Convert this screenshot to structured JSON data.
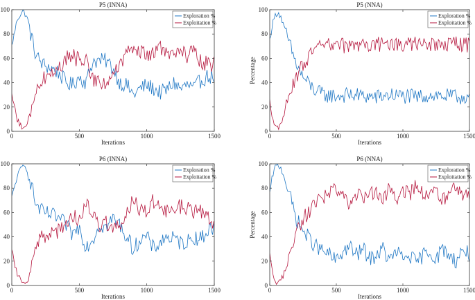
{
  "colors": {
    "exploration": "#1f77c4",
    "exploitation": "#b5163d"
  },
  "chart_data": [
    {
      "type": "line",
      "title": "P5 (INNA)",
      "xlabel": "Iterations",
      "ylabel": "",
      "xlim": [
        0,
        1500
      ],
      "ylim": [
        0,
        100
      ],
      "xticks": [
        0,
        500,
        1000,
        1500
      ],
      "yticks": [
        0,
        20,
        40,
        60,
        80,
        100
      ],
      "grid": false,
      "legend": "top-right",
      "series": [
        {
          "name": "Exploration %",
          "color": "exploration",
          "x": [
            0,
            40,
            80,
            110,
            140,
            180,
            230,
            290,
            350,
            400,
            450,
            500,
            550,
            600,
            650,
            700,
            750,
            800,
            850,
            900,
            950,
            1000,
            1050,
            1100,
            1150,
            1200,
            1250,
            1300,
            1350,
            1400,
            1450,
            1500
          ],
          "values": [
            70,
            92,
            99,
            95,
            80,
            62,
            55,
            52,
            48,
            40,
            38,
            45,
            40,
            58,
            58,
            58,
            52,
            40,
            38,
            30,
            35,
            38,
            35,
            32,
            34,
            40,
            35,
            38,
            35,
            42,
            45,
            45
          ]
        },
        {
          "name": "Exploitation %",
          "color": "exploitation",
          "x": [
            0,
            40,
            80,
            110,
            140,
            180,
            230,
            290,
            350,
            400,
            450,
            500,
            550,
            600,
            650,
            700,
            750,
            800,
            850,
            900,
            950,
            1000,
            1050,
            1100,
            1150,
            1200,
            1250,
            1300,
            1350,
            1400,
            1450,
            1500
          ],
          "values": [
            30,
            10,
            2,
            3,
            15,
            35,
            43,
            48,
            52,
            60,
            62,
            58,
            60,
            42,
            42,
            40,
            45,
            55,
            62,
            70,
            65,
            62,
            65,
            68,
            66,
            62,
            65,
            62,
            65,
            58,
            55,
            55
          ]
        }
      ]
    },
    {
      "type": "line",
      "title": "P5 (NNA)",
      "xlabel": "Iterations",
      "ylabel": "Percentage",
      "xlim": [
        0,
        1500
      ],
      "ylim": [
        0,
        100
      ],
      "xticks": [
        0,
        500,
        1000,
        1500
      ],
      "yticks": [
        0,
        20,
        40,
        60,
        80,
        100
      ],
      "grid": false,
      "legend": "top-right",
      "series": [
        {
          "name": "Exploration %",
          "color": "exploration",
          "x": [
            0,
            20,
            40,
            60,
            80,
            100,
            130,
            160,
            190,
            220,
            260,
            300,
            350,
            400,
            500,
            600,
            700,
            800,
            900,
            1000,
            1100,
            1200,
            1300,
            1400,
            1500
          ],
          "values": [
            75,
            88,
            95,
            98,
            95,
            88,
            78,
            68,
            58,
            50,
            43,
            38,
            33,
            30,
            29,
            30,
            29,
            28,
            30,
            29,
            28,
            30,
            29,
            28,
            29
          ]
        },
        {
          "name": "Exploitation %",
          "color": "exploitation",
          "x": [
            0,
            20,
            40,
            60,
            80,
            100,
            130,
            160,
            190,
            220,
            260,
            300,
            350,
            400,
            500,
            600,
            700,
            800,
            900,
            1000,
            1100,
            1200,
            1300,
            1400,
            1500
          ],
          "values": [
            25,
            12,
            5,
            2,
            5,
            12,
            22,
            32,
            42,
            50,
            57,
            62,
            67,
            70,
            71,
            70,
            71,
            72,
            70,
            71,
            72,
            70,
            71,
            72,
            71
          ]
        }
      ]
    },
    {
      "type": "line",
      "title": "P6 (INNA)",
      "xlabel": "Iterations",
      "ylabel": "",
      "xlim": [
        0,
        1500
      ],
      "ylim": [
        0,
        100
      ],
      "xticks": [
        0,
        500,
        1000,
        1500
      ],
      "yticks": [
        0,
        20,
        40,
        60,
        80,
        100
      ],
      "grid": false,
      "legend": "top-right",
      "series": [
        {
          "name": "Exploration %",
          "color": "exploration",
          "x": [
            0,
            40,
            80,
            110,
            140,
            180,
            230,
            290,
            350,
            400,
            450,
            500,
            550,
            600,
            650,
            700,
            750,
            800,
            850,
            900,
            950,
            1000,
            1050,
            1100,
            1150,
            1200,
            1250,
            1300,
            1350,
            1400,
            1450,
            1500
          ],
          "values": [
            72,
            90,
            98,
            97,
            85,
            66,
            60,
            58,
            55,
            50,
            42,
            48,
            32,
            38,
            50,
            48,
            55,
            50,
            40,
            30,
            38,
            40,
            30,
            36,
            40,
            38,
            35,
            36,
            40,
            38,
            45,
            48
          ]
        },
        {
          "name": "Exploitation %",
          "color": "exploitation",
          "x": [
            0,
            40,
            80,
            110,
            140,
            180,
            230,
            290,
            350,
            400,
            450,
            500,
            550,
            600,
            650,
            700,
            750,
            800,
            850,
            900,
            950,
            1000,
            1050,
            1100,
            1150,
            1200,
            1250,
            1300,
            1350,
            1400,
            1450,
            1500
          ],
          "values": [
            28,
            10,
            2,
            3,
            15,
            34,
            40,
            42,
            45,
            50,
            58,
            52,
            68,
            62,
            50,
            52,
            45,
            50,
            60,
            70,
            62,
            60,
            70,
            64,
            60,
            62,
            65,
            64,
            60,
            62,
            55,
            52
          ]
        }
      ]
    },
    {
      "type": "line",
      "title": "P6 (NNA)",
      "xlabel": "Iterations",
      "ylabel": "Percentage",
      "xlim": [
        0,
        1500
      ],
      "ylim": [
        0,
        100
      ],
      "xticks": [
        0,
        500,
        1000,
        1500
      ],
      "yticks": [
        0,
        20,
        40,
        60,
        80,
        100
      ],
      "grid": false,
      "legend": "top-right",
      "series": [
        {
          "name": "Exploration %",
          "color": "exploration",
          "x": [
            0,
            20,
            40,
            60,
            80,
            100,
            130,
            160,
            200,
            250,
            300,
            350,
            400,
            450,
            500,
            550,
            600,
            650,
            700,
            750,
            800,
            850,
            900,
            950,
            1000,
            1050,
            1100,
            1150,
            1200,
            1250,
            1300,
            1350,
            1400,
            1450,
            1500
          ],
          "values": [
            75,
            90,
            97,
            99,
            97,
            92,
            82,
            70,
            55,
            45,
            38,
            32,
            28,
            25,
            20,
            28,
            32,
            25,
            30,
            22,
            25,
            30,
            20,
            28,
            22,
            25,
            18,
            25,
            28,
            22,
            30,
            25,
            20,
            30,
            25
          ]
        },
        {
          "name": "Exploitation %",
          "color": "exploitation",
          "x": [
            0,
            20,
            40,
            60,
            80,
            100,
            130,
            160,
            200,
            250,
            300,
            350,
            400,
            450,
            500,
            550,
            600,
            650,
            700,
            750,
            800,
            850,
            900,
            950,
            1000,
            1050,
            1100,
            1150,
            1200,
            1250,
            1300,
            1350,
            1400,
            1450,
            1500
          ],
          "values": [
            25,
            10,
            3,
            1,
            3,
            8,
            18,
            30,
            45,
            55,
            62,
            68,
            72,
            75,
            80,
            72,
            68,
            75,
            70,
            78,
            75,
            70,
            80,
            72,
            78,
            75,
            82,
            75,
            72,
            78,
            70,
            75,
            80,
            70,
            75
          ]
        }
      ]
    }
  ]
}
